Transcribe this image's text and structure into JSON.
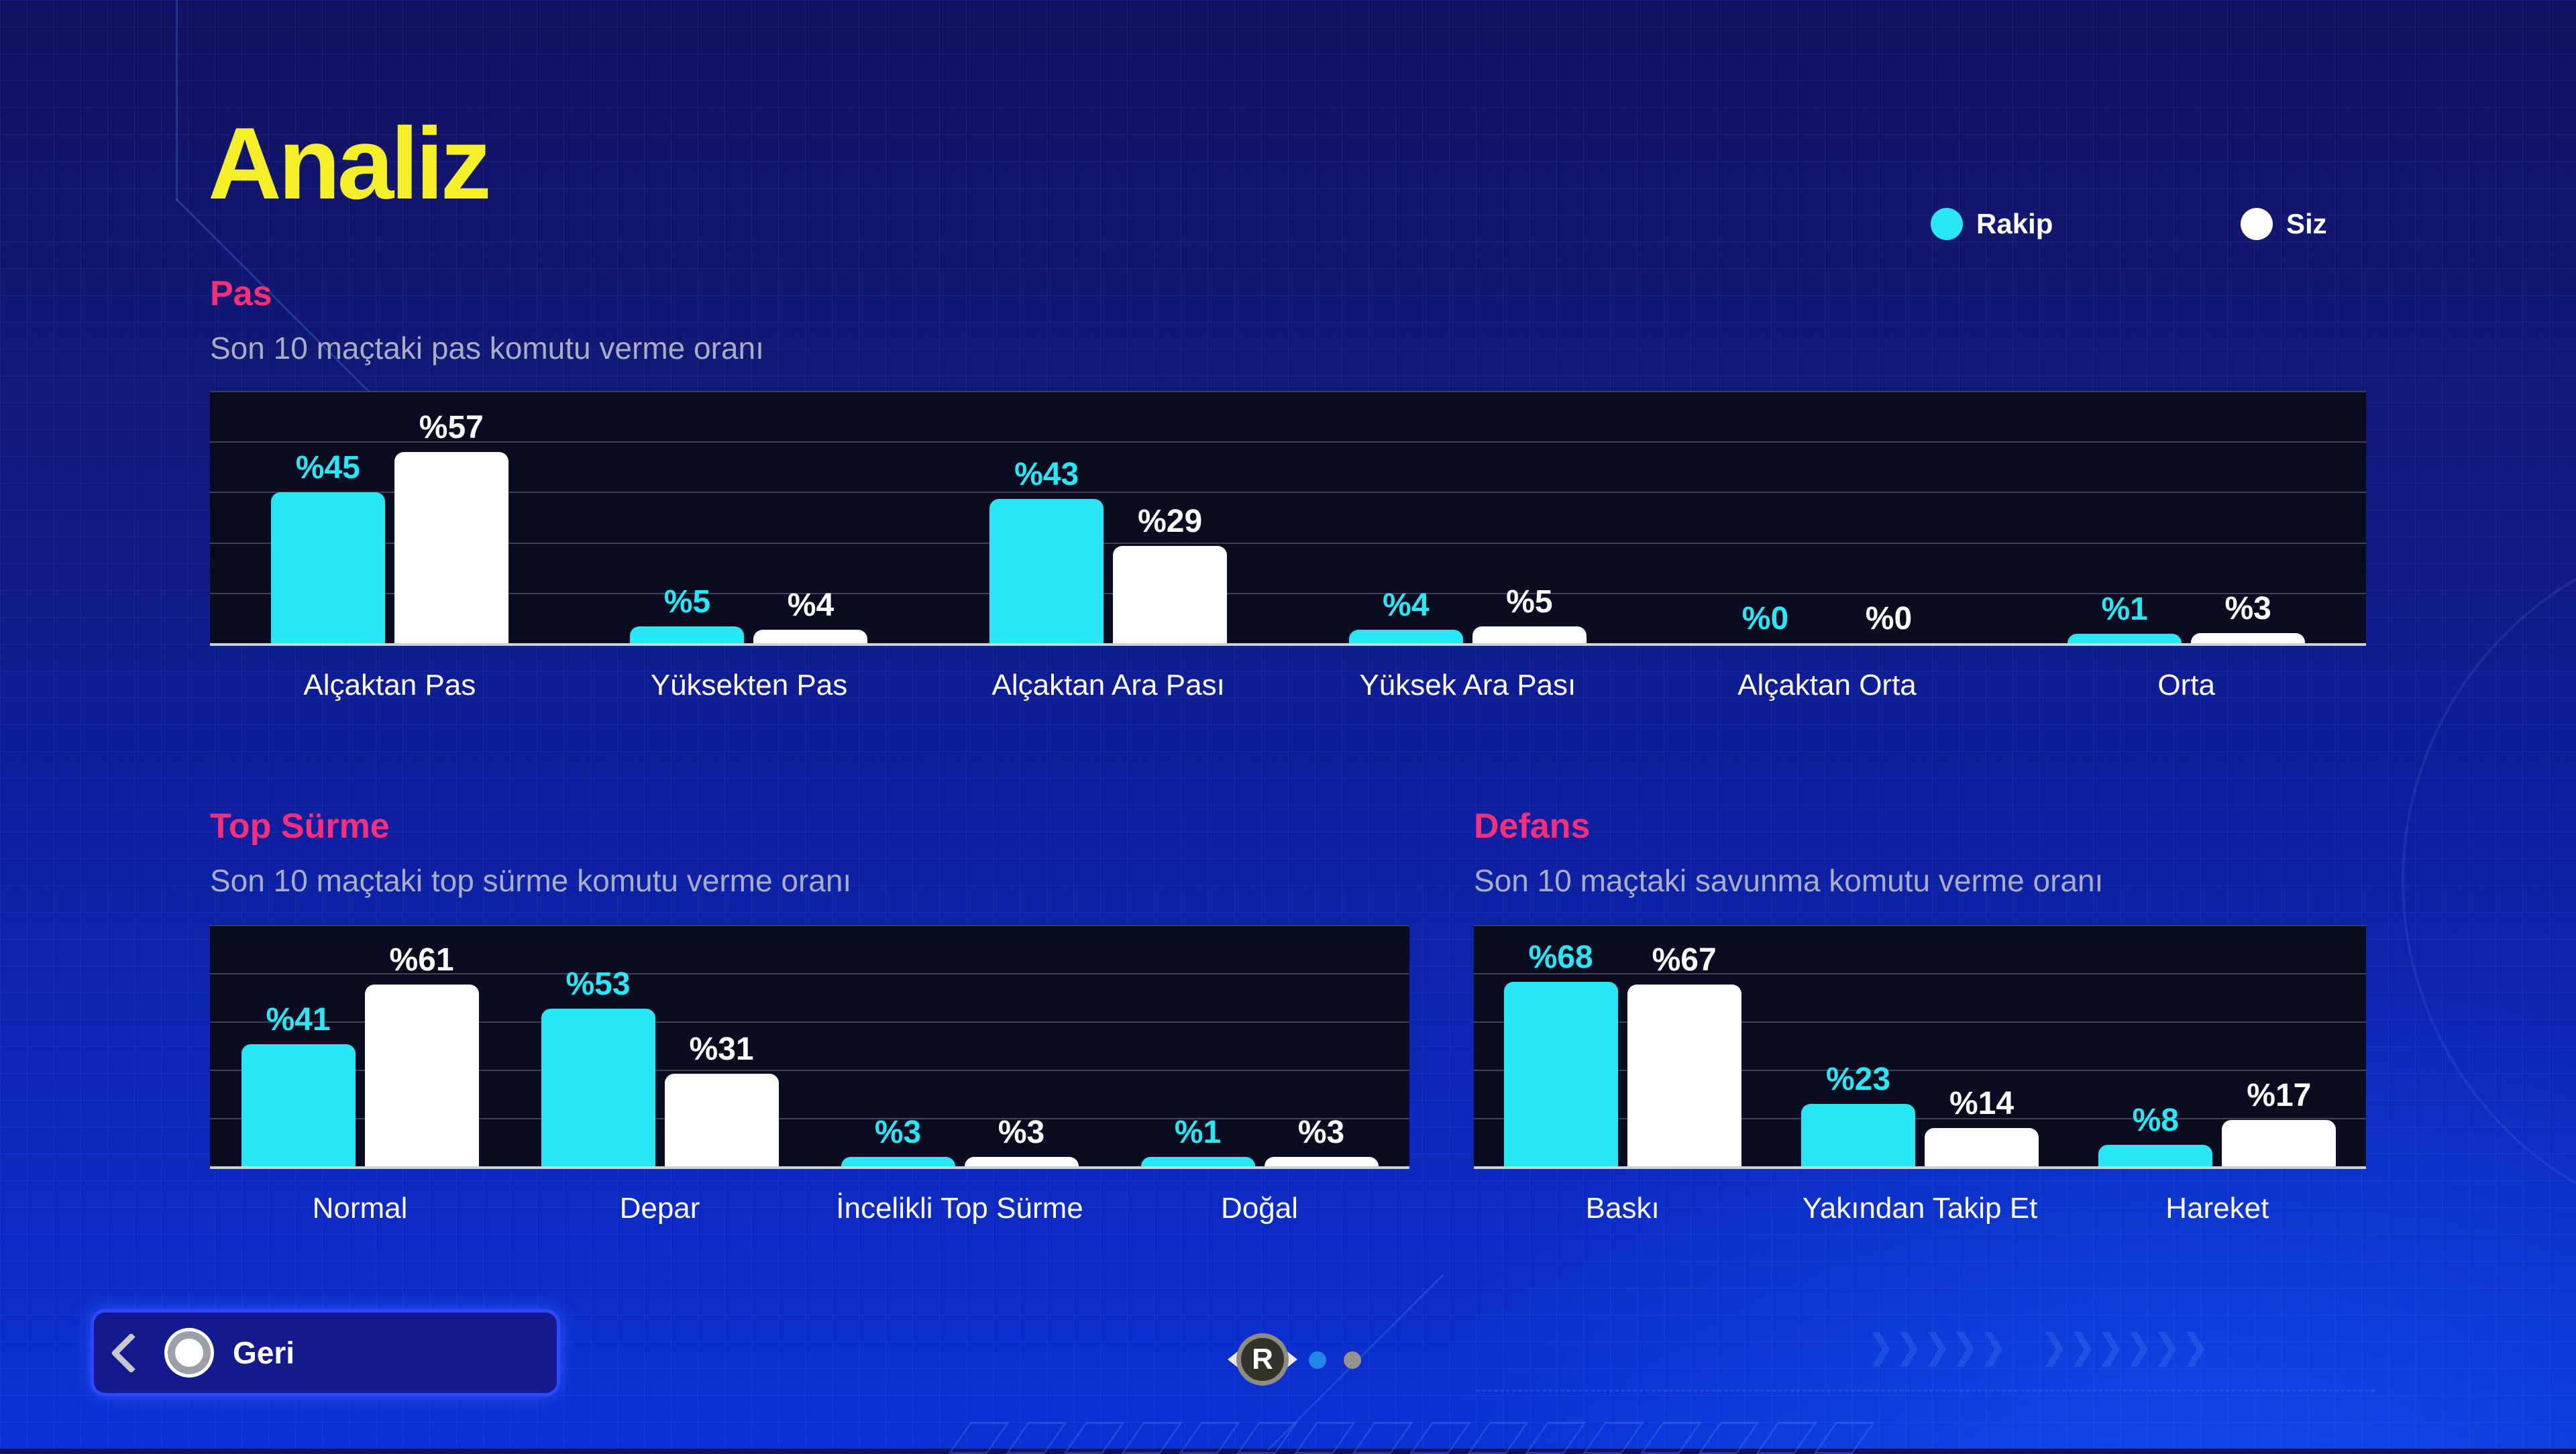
{
  "page_title": "Analiz",
  "legend": {
    "items": [
      {
        "label": "Rakip",
        "color": "#29e7f6"
      },
      {
        "label": "Siz",
        "color": "#ffffff"
      }
    ]
  },
  "chart_data": [
    {
      "type": "bar",
      "title": "Pas",
      "subtitle": "Son 10 maçtaki pas komutu verme oranı",
      "value_prefix": "%",
      "categories": [
        "Alçaktan Pas",
        "Yüksekten Pas",
        "Alçaktan Ara Pası",
        "Yüksek Ara Pası",
        "Alçaktan Orta",
        "Orta"
      ],
      "series": [
        {
          "name": "Rakip",
          "color": "#29e7f6",
          "values": [
            45,
            5,
            43,
            4,
            0,
            1
          ]
        },
        {
          "name": "Siz",
          "color": "#ffffff",
          "values": [
            57,
            4,
            29,
            5,
            0,
            3
          ]
        }
      ],
      "ylim": [
        0,
        76
      ],
      "grid_divisions": 5,
      "legend_position": "top-right",
      "grid": true
    },
    {
      "type": "bar",
      "title": "Top Sürme",
      "subtitle": "Son 10 maçtaki top sürme komutu verme oranı",
      "value_prefix": "%",
      "categories": [
        "Normal",
        "Depar",
        "İncelikli Top Sürme",
        "Doğal"
      ],
      "series": [
        {
          "name": "Rakip",
          "color": "#29e7f6",
          "values": [
            41,
            53,
            3,
            1
          ]
        },
        {
          "name": "Siz",
          "color": "#ffffff",
          "values": [
            61,
            31,
            3,
            3
          ]
        }
      ],
      "ylim": [
        0,
        82
      ],
      "grid_divisions": 5,
      "legend_position": "top-right",
      "grid": true
    },
    {
      "type": "bar",
      "title": "Defans",
      "subtitle": "Son 10 maçtaki savunma komutu verme oranı",
      "value_prefix": "%",
      "categories": [
        "Baskı",
        "Yakından Takip Et",
        "Hareket"
      ],
      "series": [
        {
          "name": "Rakip",
          "color": "#29e7f6",
          "values": [
            68,
            23,
            8
          ]
        },
        {
          "name": "Siz",
          "color": "#ffffff",
          "values": [
            67,
            14,
            17
          ]
        }
      ],
      "ylim": [
        0,
        90
      ],
      "grid_divisions": 5,
      "legend_position": "top-right",
      "grid": true
    }
  ],
  "footer": {
    "back_button": {
      "label": "Geri",
      "gamepad_icon": "circle-button"
    },
    "page_indicator": {
      "stick_label": "R",
      "dots": [
        {
          "state": "active"
        },
        {
          "state": "inactive"
        }
      ]
    }
  },
  "colors": {
    "page_title": "#f4ef29",
    "section_title": "#fb2e79",
    "subtitle": "#a9adc4",
    "category_label": "#ffffff",
    "plot_background": "#0a0c20",
    "gridline": "#3f4254",
    "baseline": "#c9d2e2",
    "rakip": "#29e7f6",
    "siz": "#ffffff",
    "dot_active": "#1e86e8",
    "dot_inactive": "#98938c"
  }
}
